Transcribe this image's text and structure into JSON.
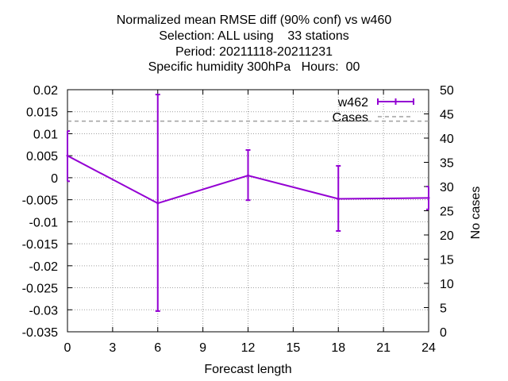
{
  "chart_data": {
    "type": "line",
    "title_lines": [
      "Normalized mean RMSE diff (90% conf) vs w460",
      "Selection: ALL using    33 stations",
      "Period: 20211118-20211231",
      "Specific humidity 300hPa   Hours:  00"
    ],
    "xlabel": "Forecast length",
    "ylabel": "",
    "y2label": "No cases",
    "xlim": [
      0,
      24
    ],
    "ylim": [
      -0.035,
      0.02
    ],
    "y2lim": [
      0,
      50
    ],
    "xticks": [
      "0",
      "3",
      "6",
      "9",
      "12",
      "15",
      "18",
      "21",
      "24"
    ],
    "yticks": [
      "0.02",
      "0.015",
      "0.01",
      "0.005",
      "0",
      "-0.005",
      "-0.01",
      "-0.015",
      "-0.02",
      "-0.025",
      "-0.03",
      "-0.035"
    ],
    "y2ticks": [
      "50",
      "45",
      "40",
      "35",
      "30",
      "25",
      "20",
      "15",
      "10",
      "5",
      "0"
    ],
    "grid": true,
    "legend_position": "top-right",
    "series": [
      {
        "name": "w462",
        "color": "#9400d3",
        "x": [
          0,
          6,
          12,
          18,
          24
        ],
        "y": [
          0.005,
          -0.0058,
          0.0005,
          -0.0048,
          -0.0046
        ],
        "err_low": [
          -0.0008,
          -0.0303,
          -0.0051,
          -0.0121,
          -0.0072
        ],
        "err_high": [
          0.0106,
          0.0189,
          0.0063,
          0.0027,
          -0.002
        ]
      },
      {
        "name": "Cases",
        "color": "#a0a0a0",
        "style": "dashed",
        "axis": "y2",
        "x": [
          0,
          24
        ],
        "y": [
          43.5,
          43.5
        ]
      }
    ]
  }
}
